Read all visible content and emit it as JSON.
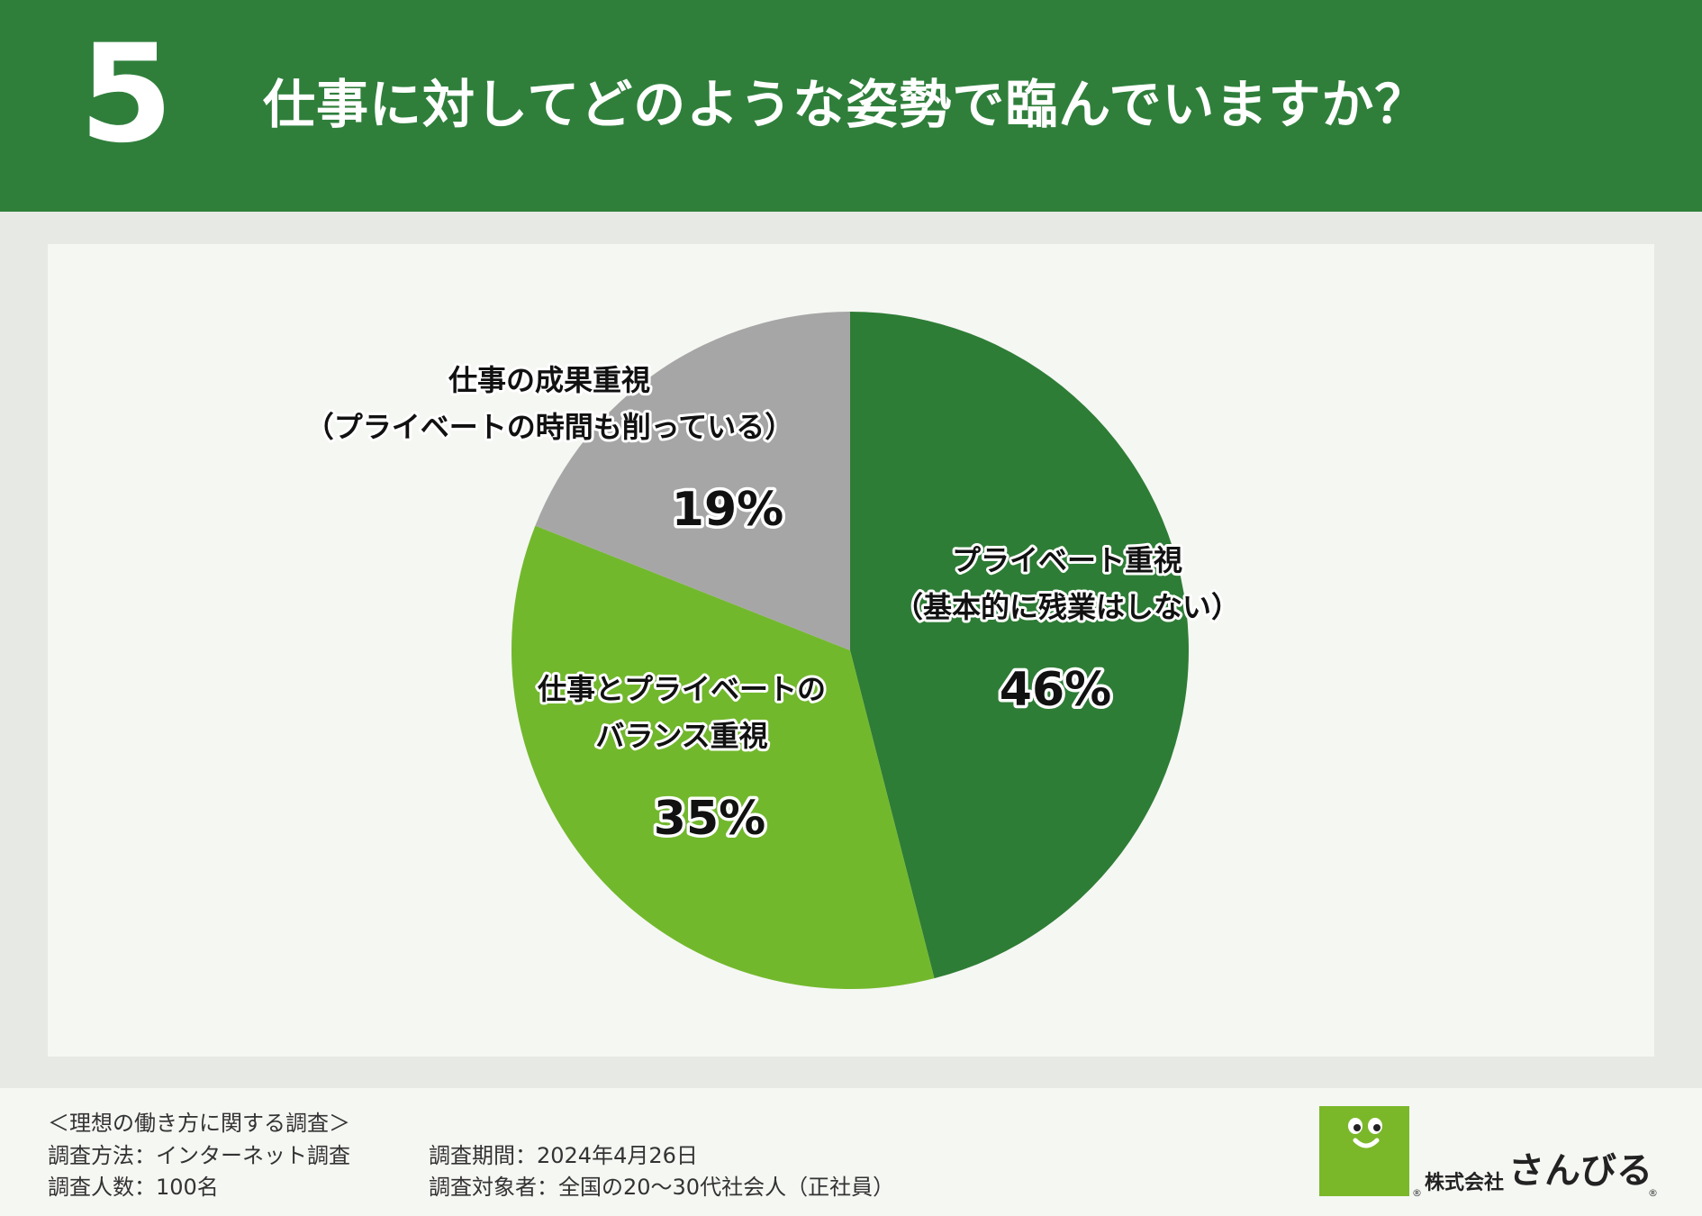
{
  "header": {
    "number": "5",
    "title": "仕事に対してどのような姿勢で臨んでいますか？"
  },
  "colors": {
    "header_bg": "#2f7f3b",
    "slice_private": "#2e7d36",
    "slice_balance": "#72b82d",
    "slice_results": "#a6a6a6"
  },
  "chart_data": {
    "type": "pie",
    "title": "",
    "slices": [
      {
        "label_lines": [
          "プライベート重視",
          "（基本的に残業はしない）"
        ],
        "value": 46,
        "value_label": "46%",
        "color": "#2e7d36"
      },
      {
        "label_lines": [
          "仕事とプライベートの",
          "バランス重視"
        ],
        "value": 35,
        "value_label": "35%",
        "color": "#72b82d"
      },
      {
        "label_lines": [
          "仕事の成果重視",
          "（プライベートの時間も削っている）"
        ],
        "value": 19,
        "value_label": "19%",
        "color": "#a6a6a6"
      }
    ],
    "start": "12 o'clock",
    "direction": "clockwise"
  },
  "footer": {
    "survey_title": "＜理想の働き方に関する調査＞",
    "method": "調査方法：インターネット調査",
    "count": "調査人数：100名",
    "period": "調査期間：2024年4月26日",
    "target": "調査対象者：全国の20〜30代社会人（正社員）"
  },
  "logo": {
    "company_prefix": "株式会社",
    "company_name": "さんびる",
    "registered_mark": "®"
  }
}
